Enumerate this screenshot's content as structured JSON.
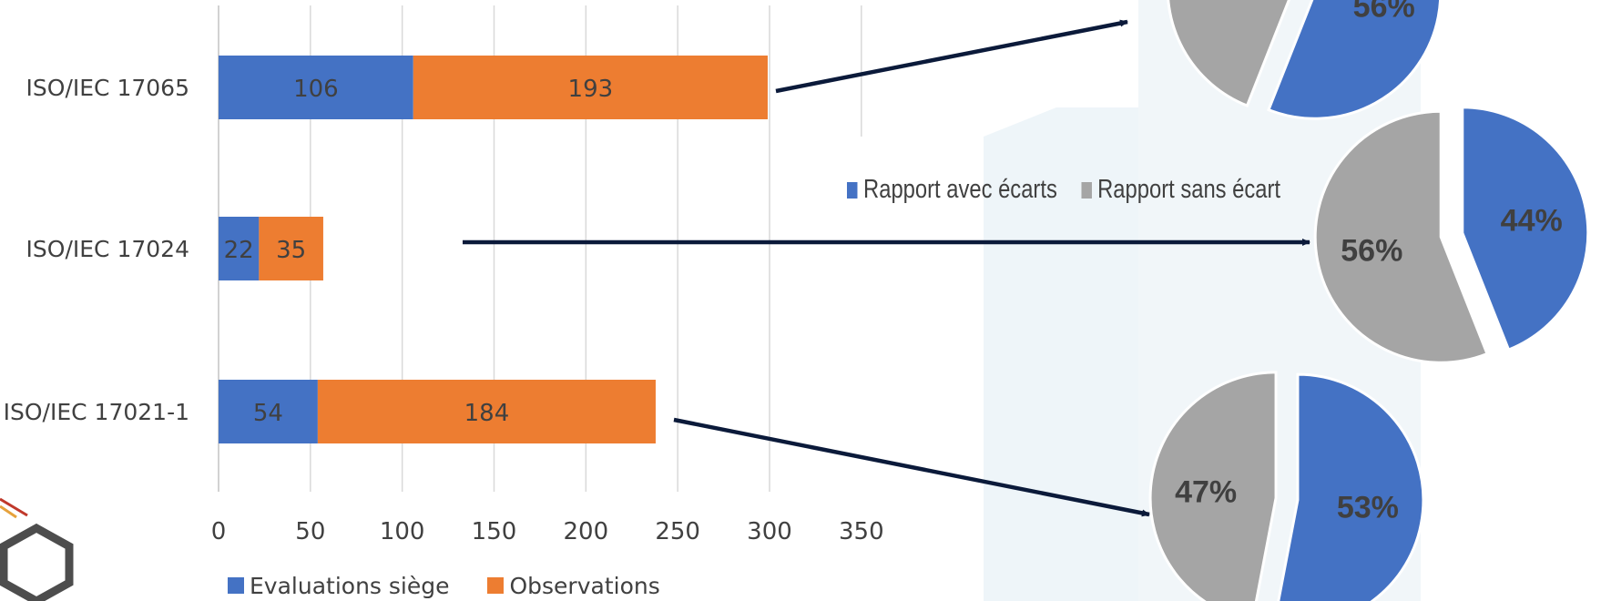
{
  "colors": {
    "evaluations": "#4472c4",
    "observations": "#ed7d31",
    "avec_ecarts": "#4472c4",
    "sans_ecart": "#a5a5a5",
    "arrow": "#0b1a3a",
    "grid": "#d9d9d9",
    "text": "#404040"
  },
  "chart_data": [
    {
      "type": "bar",
      "orientation": "horizontal",
      "stacked": true,
      "categories": [
        "ISO/IEC 17065",
        "ISO/IEC 17024",
        "ISO/IEC 17021-1"
      ],
      "series": [
        {
          "name": "Evaluations siège",
          "values": [
            106,
            22,
            54
          ]
        },
        {
          "name": "Observations",
          "values": [
            193,
            35,
            184
          ]
        }
      ],
      "xlim": [
        0,
        350
      ],
      "xticks": [
        "0",
        "50",
        "100",
        "150",
        "200",
        "250",
        "300",
        "350"
      ],
      "grid": true,
      "legend_position": "bottom"
    },
    {
      "type": "pie",
      "category": "ISO/IEC 17065",
      "slices": [
        {
          "name": "Rapport avec écarts",
          "value": 56,
          "label": "56%"
        },
        {
          "name": "Rapport sans écart",
          "value": 44,
          "label": ""
        }
      ]
    },
    {
      "type": "pie",
      "category": "ISO/IEC 17024",
      "slices": [
        {
          "name": "Rapport avec écarts",
          "value": 44,
          "label": "44%"
        },
        {
          "name": "Rapport sans écart",
          "value": 56,
          "label": "56%"
        }
      ],
      "legend": [
        "Rapport avec écarts",
        "Rapport sans écart"
      ],
      "legend_position": "top-left"
    },
    {
      "type": "pie",
      "category": "ISO/IEC 17021-1",
      "slices": [
        {
          "name": "Rapport avec écarts",
          "value": 53,
          "label": "53%"
        },
        {
          "name": "Rapport sans écart",
          "value": 47,
          "label": "47%"
        }
      ]
    }
  ]
}
